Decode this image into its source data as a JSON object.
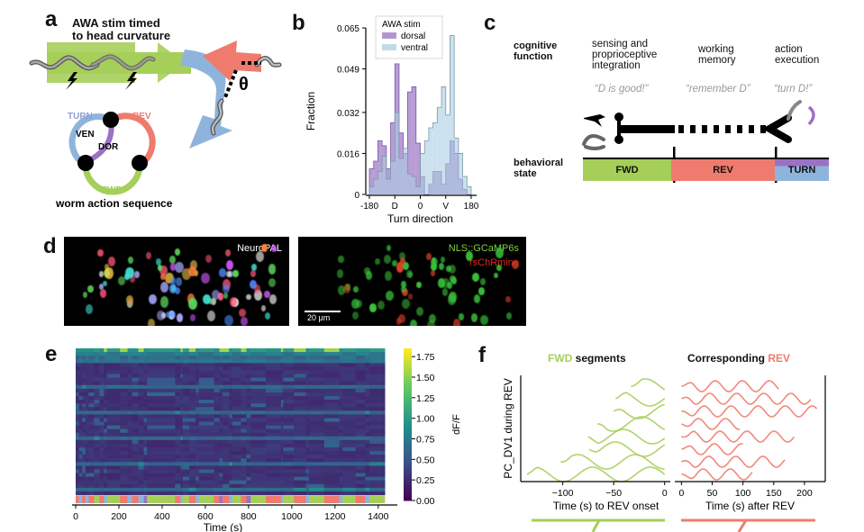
{
  "panel_labels": {
    "a": "a",
    "b": "b",
    "c": "c",
    "d": "d",
    "e": "e",
    "f": "f"
  },
  "panel_a": {
    "title_line1": "AWA stim timed",
    "title_line2": "to head curvature",
    "theta_symbol": "θ",
    "cycle": {
      "turn": "TURN",
      "rev": "REV",
      "fwd": "FWD",
      "ven": "VEN",
      "dor": "DOR",
      "caption": "worm action sequence"
    },
    "colors": {
      "fwd": "#a6cf5a",
      "rev": "#ef7b6e",
      "turn": "#8fb4dc",
      "dor": "#9a72c4"
    }
  },
  "chart_data": [
    {
      "type": "bar",
      "id": "panel-b-histogram",
      "title": "",
      "xlabel": "Turn direction",
      "ylabel": "Fraction",
      "xlim": [
        -180,
        180
      ],
      "ylim": [
        0,
        0.065
      ],
      "yticks": [
        "0",
        "0.016",
        "0.032",
        "0.049",
        "0.065"
      ],
      "ytick_values": [
        0,
        0.016,
        0.032,
        0.049,
        0.065
      ],
      "xticks": [
        "-180",
        "D",
        "0",
        "V",
        "180"
      ],
      "xtick_values": [
        -180,
        -90,
        0,
        90,
        180
      ],
      "legend": {
        "title": "AWA stim",
        "placement": "top-center"
      },
      "bin_edges": [
        -180,
        -165,
        -150,
        -135,
        -120,
        -105,
        -90,
        -75,
        -60,
        -45,
        -30,
        -15,
        0,
        15,
        30,
        45,
        60,
        75,
        90,
        105,
        120,
        135,
        150,
        165,
        180
      ],
      "series": [
        {
          "name": "dorsal",
          "color": "#9a72c4",
          "values": [
            0.01,
            0.013,
            0.021,
            0.019,
            0.01,
            0.028,
            0.051,
            0.024,
            0.016,
            0.04,
            0.042,
            0.02,
            0.007,
            0.0,
            0.004,
            0.009,
            0.009,
            0.004,
            0.012,
            0.021,
            0.016,
            0.006,
            0.002,
            0.0
          ]
        },
        {
          "name": "ventral",
          "color": "#a9cfe3",
          "values": [
            0.003,
            0.006,
            0.009,
            0.015,
            0.006,
            0.013,
            0.032,
            0.014,
            0.018,
            0.008,
            0.007,
            0.003,
            0.016,
            0.021,
            0.026,
            0.028,
            0.034,
            0.042,
            0.031,
            0.062,
            0.022,
            0.016,
            0.007,
            0.003
          ]
        }
      ]
    },
    {
      "type": "heatmap",
      "id": "panel-e-heatmap",
      "xlabel": "Time (s)",
      "ylabel": "",
      "xlim": [
        0,
        1430
      ],
      "xticks": [
        "0",
        "200",
        "400",
        "600",
        "800",
        "1000",
        "1200",
        "1400"
      ],
      "xtick_values": [
        0,
        200,
        400,
        600,
        800,
        1000,
        1200,
        1400
      ],
      "colorbar": {
        "label": "dF/F",
        "range": [
          0,
          1.85
        ],
        "ticks": [
          "0.00",
          "0.25",
          "0.50",
          "0.75",
          "1.00",
          "1.25",
          "1.50",
          "1.75"
        ],
        "tick_values": [
          0,
          0.25,
          0.5,
          0.75,
          1.0,
          1.25,
          1.5,
          1.75
        ],
        "colormap": "viridis"
      },
      "behavior_bar": [
        {
          "start": 0,
          "end": 15,
          "state": "REV"
        },
        {
          "start": 15,
          "end": 30,
          "state": "TURN"
        },
        {
          "start": 30,
          "end": 45,
          "state": "REV"
        },
        {
          "start": 45,
          "end": 60,
          "state": "TURN"
        },
        {
          "start": 60,
          "end": 85,
          "state": "REV"
        },
        {
          "start": 85,
          "end": 110,
          "state": "FWD"
        },
        {
          "start": 110,
          "end": 130,
          "state": "REV"
        },
        {
          "start": 130,
          "end": 145,
          "state": "TURN"
        },
        {
          "start": 145,
          "end": 205,
          "state": "FWD"
        },
        {
          "start": 205,
          "end": 240,
          "state": "REV"
        },
        {
          "start": 240,
          "end": 260,
          "state": "TURN"
        },
        {
          "start": 260,
          "end": 290,
          "state": "REV"
        },
        {
          "start": 290,
          "end": 315,
          "state": "TURN"
        },
        {
          "start": 315,
          "end": 330,
          "state": "DOR"
        },
        {
          "start": 330,
          "end": 460,
          "state": "FWD"
        },
        {
          "start": 460,
          "end": 485,
          "state": "REV"
        },
        {
          "start": 485,
          "end": 495,
          "state": "TURN"
        },
        {
          "start": 495,
          "end": 525,
          "state": "FWD"
        },
        {
          "start": 525,
          "end": 555,
          "state": "REV"
        },
        {
          "start": 555,
          "end": 570,
          "state": "TURN"
        },
        {
          "start": 570,
          "end": 640,
          "state": "FWD"
        },
        {
          "start": 640,
          "end": 665,
          "state": "REV"
        },
        {
          "start": 665,
          "end": 680,
          "state": "DOR"
        },
        {
          "start": 680,
          "end": 710,
          "state": "REV"
        },
        {
          "start": 710,
          "end": 725,
          "state": "TURN"
        },
        {
          "start": 725,
          "end": 765,
          "state": "FWD"
        },
        {
          "start": 765,
          "end": 790,
          "state": "REV"
        },
        {
          "start": 790,
          "end": 810,
          "state": "DOR"
        },
        {
          "start": 810,
          "end": 880,
          "state": "FWD"
        },
        {
          "start": 880,
          "end": 950,
          "state": "REV"
        },
        {
          "start": 950,
          "end": 960,
          "state": "TURN"
        },
        {
          "start": 960,
          "end": 1010,
          "state": "FWD"
        },
        {
          "start": 1010,
          "end": 1065,
          "state": "REV"
        },
        {
          "start": 1065,
          "end": 1080,
          "state": "TURN"
        },
        {
          "start": 1080,
          "end": 1150,
          "state": "FWD"
        },
        {
          "start": 1150,
          "end": 1220,
          "state": "REV"
        },
        {
          "start": 1220,
          "end": 1235,
          "state": "TURN"
        },
        {
          "start": 1235,
          "end": 1295,
          "state": "FWD"
        },
        {
          "start": 1295,
          "end": 1340,
          "state": "REV"
        },
        {
          "start": 1340,
          "end": 1360,
          "state": "TURN"
        },
        {
          "start": 1360,
          "end": 1430,
          "state": "FWD"
        }
      ]
    },
    {
      "type": "line",
      "id": "panel-f-fwd",
      "title": "FWD segments",
      "xlabel": "Time (s) to REV onset",
      "ylabel": "PC_DV1 during REV",
      "xlim": [
        -135,
        2
      ],
      "xticks": [
        "−100",
        "−50",
        "0"
      ],
      "xtick_values": [
        -100,
        -50,
        0
      ],
      "series": [
        {
          "name": "seg1",
          "start": -33,
          "color": "#a6cf5a"
        },
        {
          "name": "seg2",
          "start": -48,
          "color": "#a6cf5a"
        },
        {
          "name": "seg3",
          "start": -50,
          "color": "#a6cf5a"
        },
        {
          "name": "seg4",
          "start": -66,
          "color": "#a6cf5a"
        },
        {
          "name": "seg5",
          "start": -75,
          "color": "#a6cf5a"
        },
        {
          "name": "seg6",
          "start": -74,
          "color": "#a6cf5a"
        },
        {
          "name": "seg7",
          "start": -102,
          "color": "#a6cf5a"
        },
        {
          "name": "seg8",
          "start": -135,
          "color": "#a6cf5a"
        }
      ]
    },
    {
      "type": "line",
      "id": "panel-f-rev",
      "title": "Corresponding REV",
      "xlabel": "Time (s) after REV",
      "ylabel": "",
      "xlim": [
        -2,
        225
      ],
      "xticks": [
        "0",
        "50",
        "100",
        "150",
        "200"
      ],
      "xtick_values": [
        0,
        50,
        100,
        150,
        200
      ],
      "series": [
        {
          "name": "rev1",
          "end": 158,
          "color": "#ef7b6e"
        },
        {
          "name": "rev2",
          "end": 210,
          "color": "#ef7b6e"
        },
        {
          "name": "rev3",
          "end": 220,
          "color": "#ef7b6e"
        },
        {
          "name": "rev4",
          "end": 95,
          "color": "#ef7b6e"
        },
        {
          "name": "rev5",
          "end": 183,
          "color": "#ef7b6e"
        },
        {
          "name": "rev6",
          "end": 100,
          "color": "#ef7b6e"
        },
        {
          "name": "rev7",
          "end": 168,
          "color": "#ef7b6e"
        },
        {
          "name": "rev8",
          "end": 115,
          "color": "#ef7b6e"
        }
      ]
    }
  ],
  "panel_c": {
    "row1_label_line1": "cognitive",
    "row1_label_line2": "function",
    "row2_label_line1": "behavioral",
    "row2_label_line2": "state",
    "phases": [
      {
        "title_lines": [
          "sensing and",
          "proprioceptive",
          "integration"
        ],
        "quote": "“D is good!”"
      },
      {
        "title_lines": [
          "working",
          "memory"
        ],
        "quote": "“remember D”"
      },
      {
        "title_lines": [
          "action",
          "execution"
        ],
        "quote": "“turn D!”"
      }
    ],
    "states": [
      {
        "label": "FWD",
        "color": "#a6cf5a"
      },
      {
        "label": "REV",
        "color": "#ef7b6e"
      },
      {
        "label": "TURN",
        "color_top": "#9a72c4",
        "color_bottom": "#8fb4dc"
      }
    ]
  },
  "panel_d": {
    "left_label": "NeuroPAL",
    "right_label_1": "NLS::GCaMP6s",
    "right_label_2": "rsChRmine",
    "scale_bar": "20 μm",
    "right_label_1_color": "#7fd13b",
    "right_label_2_color": "#e2261d"
  },
  "panel_f": {
    "fwd_title_colored": "FWD",
    "fwd_title_rest": " segments",
    "rev_title_rest": "Corresponding ",
    "rev_title_colored": "REV"
  },
  "state_colors": {
    "FWD": "#a6cf5a",
    "REV": "#ef7b6e",
    "TURN": "#8fb4dc",
    "DOR": "#9a72c4"
  }
}
